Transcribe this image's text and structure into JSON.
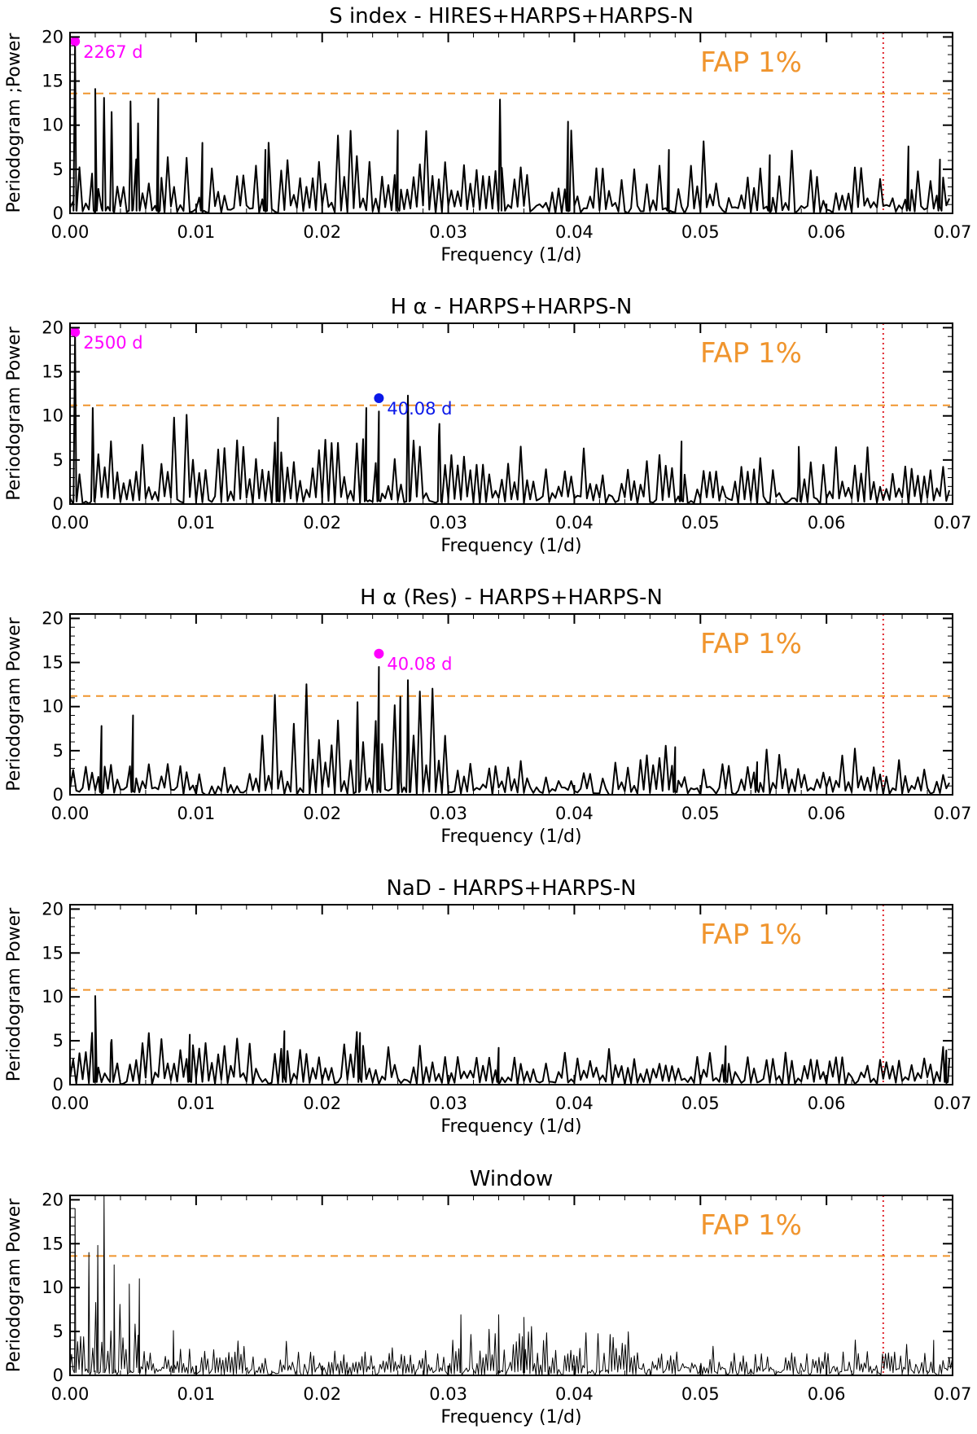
{
  "colors": {
    "fap": "#f0952e",
    "cutoff": "#e0242c",
    "magenta": "#ff00ff",
    "blue": "#0a18e8",
    "line": "#000000"
  },
  "chart_data": [
    {
      "type": "line",
      "title": "S index - HIRES+HARPS+HARPS-N",
      "xlabel": "Frequency (1/d)",
      "ylabel": "Periodogram ;Power",
      "xlim": [
        0,
        0.07
      ],
      "ylim": [
        0,
        20.5
      ],
      "xticks": [
        0,
        0.01,
        0.02,
        0.03,
        0.04,
        0.05,
        0.06,
        0.07
      ],
      "xtick_labels": [
        "0.00",
        "0.01",
        "0.02",
        "0.03",
        "0.04",
        "0.05",
        "0.06",
        "0.07"
      ],
      "yticks": [
        0,
        5,
        10,
        15,
        20
      ],
      "fap_label": "FAP 1%",
      "fap_level": 13.6,
      "cutoff_freq": 0.0645,
      "peaks": [
        {
          "x": 0.0004,
          "y": 19.5,
          "label": "2267 d",
          "color": "#ff00ff"
        }
      ],
      "series": [
        {
          "x": [
            0.0004,
            0.002,
            0.0027,
            0.0033,
            0.0048,
            0.0054,
            0.007,
            0.0105,
            0.0155,
            0.026,
            0.0341,
            0.0395,
            0.0475,
            0.0555,
            0.0665,
            0.069
          ],
          "y": [
            19.5,
            14.1,
            13.1,
            11.5,
            12.7,
            10.2,
            13.0,
            8.0,
            7.2,
            9.4,
            12.9,
            10.4,
            7.2,
            6.6,
            7.6,
            6.1
          ]
        }
      ],
      "grid": false
    },
    {
      "type": "line",
      "title": "H α - HARPS+HARPS-N",
      "xlabel": "Frequency (1/d)",
      "ylabel": "Periodogram Power",
      "xlim": [
        0,
        0.07
      ],
      "ylim": [
        0,
        20.5
      ],
      "xticks": [
        0,
        0.01,
        0.02,
        0.03,
        0.04,
        0.05,
        0.06,
        0.07
      ],
      "xtick_labels": [
        "0.00",
        "0.01",
        "0.02",
        "0.03",
        "0.04",
        "0.05",
        "0.06",
        "0.07"
      ],
      "yticks": [
        0,
        5,
        10,
        15,
        20
      ],
      "fap_label": "FAP 1%",
      "fap_level": 11.2,
      "cutoff_freq": 0.0645,
      "peaks": [
        {
          "x": 0.0004,
          "y": 19.5,
          "label": "2500 d",
          "color": "#ff00ff"
        },
        {
          "x": 0.0245,
          "y": 12.0,
          "label": "40.08 d",
          "color": "#0a18e8"
        }
      ],
      "series": [
        {
          "x": [
            0.0004,
            0.0018,
            0.0165,
            0.0235,
            0.0245,
            0.0268,
            0.0293,
            0.0485,
            0.0578
          ],
          "y": [
            19.5,
            10.9,
            9.8,
            10.9,
            10.5,
            12.3,
            9.1,
            7.1,
            6.5
          ]
        }
      ],
      "grid": false
    },
    {
      "type": "line",
      "title": "H α (Res) - HARPS+HARPS-N",
      "xlabel": "Frequency (1/d)",
      "ylabel": "Periodogram Power",
      "xlim": [
        0,
        0.07
      ],
      "ylim": [
        0,
        20.5
      ],
      "xticks": [
        0,
        0.01,
        0.02,
        0.03,
        0.04,
        0.05,
        0.06,
        0.07
      ],
      "xtick_labels": [
        "0.00",
        "0.01",
        "0.02",
        "0.03",
        "0.04",
        "0.05",
        "0.06",
        "0.07"
      ],
      "yticks": [
        0,
        5,
        10,
        15,
        20
      ],
      "fap_label": "FAP 1%",
      "fap_level": 11.2,
      "cutoff_freq": 0.0645,
      "peaks": [
        {
          "x": 0.0245,
          "y": 16.0,
          "label": "40.08 d",
          "color": "#ff00ff"
        }
      ],
      "series": [
        {
          "x": [
            0.0025,
            0.005,
            0.0228,
            0.0245,
            0.0262,
            0.0268,
            0.048,
            0.0545
          ],
          "y": [
            7.8,
            9.0,
            10.5,
            14.5,
            11.1,
            13.0,
            5.4,
            3.7
          ]
        }
      ],
      "grid": false
    },
    {
      "type": "line",
      "title": "NaD - HARPS+HARPS-N",
      "xlabel": "Frequency (1/d)",
      "ylabel": "Periodogram Power",
      "xlim": [
        0,
        0.07
      ],
      "ylim": [
        0,
        20.5
      ],
      "xticks": [
        0,
        0.01,
        0.02,
        0.03,
        0.04,
        0.05,
        0.06,
        0.07
      ],
      "xtick_labels": [
        "0.00",
        "0.01",
        "0.02",
        "0.03",
        "0.04",
        "0.05",
        "0.06",
        "0.07"
      ],
      "yticks": [
        0,
        5,
        10,
        15,
        20
      ],
      "fap_label": "FAP 1%",
      "fap_level": 10.8,
      "cutoff_freq": 0.0645,
      "peaks": [],
      "series": [
        {
          "x": [
            0.002,
            0.0033,
            0.0095,
            0.017,
            0.023,
            0.034,
            0.052,
            0.0695
          ],
          "y": [
            10.1,
            5.1,
            5.7,
            6.1,
            5.9,
            4.2,
            4.4,
            3.9
          ]
        }
      ],
      "grid": false
    },
    {
      "type": "line",
      "title": "Window",
      "xlabel": "Frequency (1/d)",
      "ylabel": "Periodogram Power",
      "xlim": [
        0,
        0.07
      ],
      "ylim": [
        0,
        20.5
      ],
      "xticks": [
        0,
        0.01,
        0.02,
        0.03,
        0.04,
        0.05,
        0.06,
        0.07
      ],
      "xtick_labels": [
        "0.00",
        "0.01",
        "0.02",
        "0.03",
        "0.04",
        "0.05",
        "0.06",
        "0.07"
      ],
      "yticks": [
        0,
        5,
        10,
        15,
        20
      ],
      "fap_label": "FAP 1%",
      "fap_level": 13.6,
      "cutoff_freq": 0.0645,
      "peaks": [],
      "series": [
        {
          "x": [
            0.0004,
            0.0015,
            0.0022,
            0.0027,
            0.0035,
            0.0047,
            0.0055,
            0.0082,
            0.031,
            0.034,
            0.036,
            0.0685
          ],
          "y": [
            19.0,
            14.0,
            14.8,
            20.5,
            12.6,
            10.4,
            11.0,
            5.1,
            6.9,
            6.9,
            6.6,
            4.0
          ]
        }
      ],
      "grid": false
    }
  ]
}
